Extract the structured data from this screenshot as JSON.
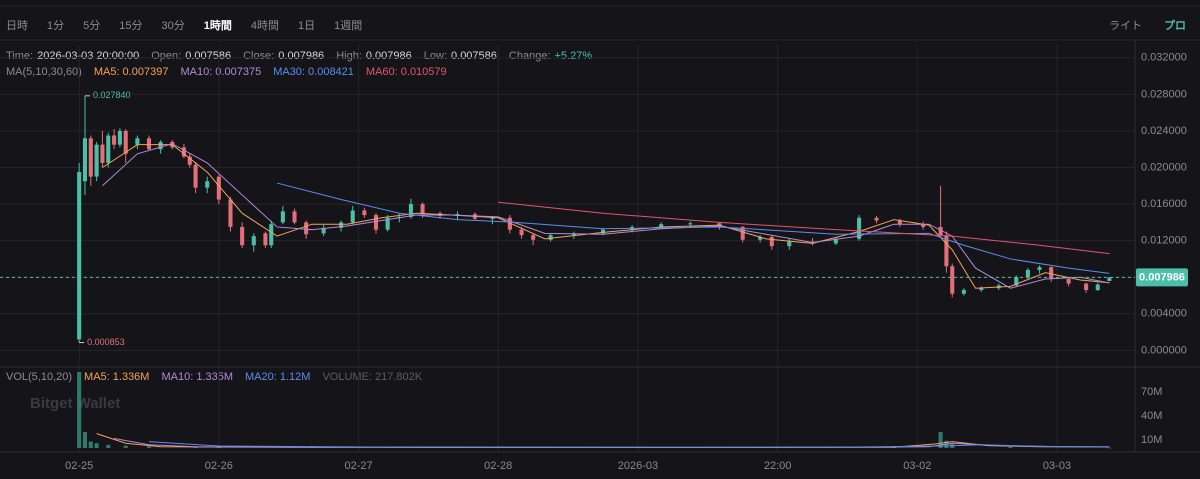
{
  "toolbar": {
    "intervals": [
      "日時",
      "1分",
      "5分",
      "15分",
      "30分",
      "1時間",
      "4時間",
      "1日",
      "1週間"
    ],
    "active_interval": 5,
    "modes": [
      "ライト",
      "プロ"
    ],
    "active_mode": 1
  },
  "chart_data": {
    "type": "candlestick",
    "info": [
      {
        "label": "Time:",
        "value": "2026-03-03 20:00:00"
      },
      {
        "label": "Open:",
        "value": "0.007586"
      },
      {
        "label": "Close:",
        "value": "0.007986"
      },
      {
        "label": "High:",
        "value": "0.007986"
      },
      {
        "label": "Low:",
        "value": "0.007586"
      },
      {
        "label": "Change:",
        "value": "+5.27%"
      }
    ],
    "up_color": "#4cbfa9",
    "down_color": "#e36f7a",
    "xlim": [
      -13.6,
      181.4
    ],
    "xticks": [
      {
        "value": 0,
        "label": "02-25"
      },
      {
        "value": 24,
        "label": "02-26"
      },
      {
        "value": 48,
        "label": "02-27"
      },
      {
        "value": 72,
        "label": "02-28"
      },
      {
        "value": 96,
        "label": "2026-03"
      },
      {
        "value": 120,
        "label": "22:00"
      },
      {
        "value": 144,
        "label": "03-02"
      },
      {
        "value": 168,
        "label": "03-03"
      }
    ],
    "ylim": [
      -0.0016,
      0.0334
    ],
    "yticks": [
      {
        "value": 0,
        "label": "0.000000"
      },
      {
        "value": 0.004,
        "label": "0.004000"
      },
      {
        "value": 0.008,
        "label": "0.008000"
      },
      {
        "value": 0.012,
        "label": "0.012000"
      },
      {
        "value": 0.016,
        "label": "0.016000"
      },
      {
        "value": 0.02,
        "label": "0.020000"
      },
      {
        "value": 0.024,
        "label": "0.024000"
      },
      {
        "value": 0.028,
        "label": "0.028000"
      },
      {
        "value": 0.032,
        "label": "0.032000"
      }
    ],
    "grid": true,
    "last_price": 0.007986,
    "annotations": [
      {
        "x": 1,
        "value": 0.02784,
        "label": "0.027840"
      },
      {
        "x": 0,
        "value": 0.000853,
        "label": "0.000853"
      }
    ],
    "candles": [
      {
        "x": 0,
        "open": 0.0012,
        "high": 0.0205,
        "low": 0.000853,
        "close": 0.0195
      },
      {
        "x": 1,
        "open": 0.0185,
        "high": 0.02784,
        "low": 0.017,
        "close": 0.0232
      },
      {
        "x": 2,
        "open": 0.0232,
        "high": 0.0235,
        "low": 0.018,
        "close": 0.019
      },
      {
        "x": 3,
        "open": 0.019,
        "high": 0.0228,
        "low": 0.0185,
        "close": 0.0225
      },
      {
        "x": 4,
        "open": 0.0225,
        "high": 0.024,
        "low": 0.02,
        "close": 0.0205
      },
      {
        "x": 5,
        "open": 0.0205,
        "high": 0.0238,
        "low": 0.02,
        "close": 0.0235
      },
      {
        "x": 6,
        "open": 0.0235,
        "high": 0.0242,
        "low": 0.022,
        "close": 0.0225
      },
      {
        "x": 7,
        "open": 0.0225,
        "high": 0.0243,
        "low": 0.0222,
        "close": 0.024
      },
      {
        "x": 8,
        "open": 0.024,
        "high": 0.0242,
        "low": 0.0205,
        "close": 0.0215
      },
      {
        "x": 10,
        "open": 0.0225,
        "high": 0.0235,
        "low": 0.022,
        "close": 0.0232
      },
      {
        "x": 12,
        "open": 0.0232,
        "high": 0.0235,
        "low": 0.0218,
        "close": 0.022
      },
      {
        "x": 14,
        "open": 0.022,
        "high": 0.023,
        "low": 0.0215,
        "close": 0.0228
      },
      {
        "x": 16,
        "open": 0.0228,
        "high": 0.023,
        "low": 0.022,
        "close": 0.0222
      },
      {
        "x": 18,
        "open": 0.0222,
        "high": 0.0226,
        "low": 0.021,
        "close": 0.0212
      },
      {
        "x": 19,
        "open": 0.0212,
        "high": 0.0215,
        "low": 0.02,
        "close": 0.0203
      },
      {
        "x": 20,
        "open": 0.0203,
        "high": 0.0206,
        "low": 0.0172,
        "close": 0.0178
      },
      {
        "x": 22,
        "open": 0.0178,
        "high": 0.019,
        "low": 0.0172,
        "close": 0.0185
      },
      {
        "x": 24,
        "open": 0.019,
        "high": 0.0192,
        "low": 0.016,
        "close": 0.0165
      },
      {
        "x": 26,
        "open": 0.0165,
        "high": 0.0168,
        "low": 0.013,
        "close": 0.0135
      },
      {
        "x": 28,
        "open": 0.0135,
        "high": 0.014,
        "low": 0.0112,
        "close": 0.0115
      },
      {
        "x": 30,
        "open": 0.0115,
        "high": 0.0128,
        "low": 0.0108,
        "close": 0.0125
      },
      {
        "x": 32,
        "open": 0.0128,
        "high": 0.013,
        "low": 0.0112,
        "close": 0.0115
      },
      {
        "x": 33,
        "open": 0.0115,
        "high": 0.0142,
        "low": 0.0112,
        "close": 0.0138
      },
      {
        "x": 35,
        "open": 0.014,
        "high": 0.0158,
        "low": 0.0138,
        "close": 0.0152
      },
      {
        "x": 37,
        "open": 0.0152,
        "high": 0.0155,
        "low": 0.0138,
        "close": 0.014
      },
      {
        "x": 39,
        "open": 0.014,
        "high": 0.0142,
        "low": 0.0122,
        "close": 0.0127
      },
      {
        "x": 42,
        "open": 0.0128,
        "high": 0.0137,
        "low": 0.0125,
        "close": 0.0134
      },
      {
        "x": 45,
        "open": 0.0134,
        "high": 0.0142,
        "low": 0.013,
        "close": 0.014
      },
      {
        "x": 47,
        "open": 0.014,
        "high": 0.0158,
        "low": 0.0138,
        "close": 0.0153
      },
      {
        "x": 49,
        "open": 0.0153,
        "high": 0.0156,
        "low": 0.0145,
        "close": 0.0148
      },
      {
        "x": 51,
        "open": 0.0148,
        "high": 0.015,
        "low": 0.0128,
        "close": 0.0132
      },
      {
        "x": 53,
        "open": 0.0132,
        "high": 0.0148,
        "low": 0.013,
        "close": 0.0145
      },
      {
        "x": 55,
        "open": 0.0145,
        "high": 0.015,
        "low": 0.014,
        "close": 0.0146
      },
      {
        "x": 57,
        "open": 0.0146,
        "high": 0.0166,
        "low": 0.0144,
        "close": 0.016
      },
      {
        "x": 59,
        "open": 0.016,
        "high": 0.0162,
        "low": 0.0145,
        "close": 0.015
      },
      {
        "x": 62,
        "open": 0.015,
        "high": 0.0152,
        "low": 0.0144,
        "close": 0.0147
      },
      {
        "x": 65,
        "open": 0.0147,
        "high": 0.0152,
        "low": 0.0143,
        "close": 0.0149
      },
      {
        "x": 68,
        "open": 0.0149,
        "high": 0.0151,
        "low": 0.0142,
        "close": 0.0144
      },
      {
        "x": 71,
        "open": 0.0144,
        "high": 0.0147,
        "low": 0.0138,
        "close": 0.0145
      },
      {
        "x": 74,
        "open": 0.0145,
        "high": 0.0148,
        "low": 0.0128,
        "close": 0.0132
      },
      {
        "x": 76,
        "open": 0.0132,
        "high": 0.0135,
        "low": 0.0122,
        "close": 0.0126
      },
      {
        "x": 78,
        "open": 0.0126,
        "high": 0.0128,
        "low": 0.0115,
        "close": 0.0121
      },
      {
        "x": 81,
        "open": 0.0121,
        "high": 0.0128,
        "low": 0.0119,
        "close": 0.0126
      },
      {
        "x": 85,
        "open": 0.0126,
        "high": 0.013,
        "low": 0.0122,
        "close": 0.0128
      },
      {
        "x": 90,
        "open": 0.0128,
        "high": 0.0134,
        "low": 0.0126,
        "close": 0.0132
      },
      {
        "x": 95,
        "open": 0.0132,
        "high": 0.0137,
        "low": 0.0129,
        "close": 0.0135
      },
      {
        "x": 100,
        "open": 0.0135,
        "high": 0.014,
        "low": 0.0133,
        "close": 0.0138
      },
      {
        "x": 105,
        "open": 0.0138,
        "high": 0.0141,
        "low": 0.0134,
        "close": 0.0139
      },
      {
        "x": 110,
        "open": 0.0139,
        "high": 0.014,
        "low": 0.0132,
        "close": 0.0135
      },
      {
        "x": 114,
        "open": 0.0135,
        "high": 0.0136,
        "low": 0.0118,
        "close": 0.0121
      },
      {
        "x": 117,
        "open": 0.0121,
        "high": 0.0126,
        "low": 0.0118,
        "close": 0.0124
      },
      {
        "x": 119,
        "open": 0.0124,
        "high": 0.0126,
        "low": 0.011,
        "close": 0.0114
      },
      {
        "x": 122,
        "open": 0.0114,
        "high": 0.0122,
        "low": 0.011,
        "close": 0.0119
      },
      {
        "x": 126,
        "open": 0.0119,
        "high": 0.0123,
        "low": 0.0115,
        "close": 0.0117
      },
      {
        "x": 130,
        "open": 0.0117,
        "high": 0.0124,
        "low": 0.0115,
        "close": 0.0122
      },
      {
        "x": 134,
        "open": 0.0122,
        "high": 0.0148,
        "low": 0.012,
        "close": 0.0145
      },
      {
        "x": 137,
        "open": 0.0145,
        "high": 0.0147,
        "low": 0.0139,
        "close": 0.0142
      },
      {
        "x": 141,
        "open": 0.0142,
        "high": 0.0144,
        "low": 0.0135,
        "close": 0.0138
      },
      {
        "x": 145,
        "open": 0.0138,
        "high": 0.0141,
        "low": 0.0132,
        "close": 0.0135
      },
      {
        "x": 148,
        "open": 0.0135,
        "high": 0.018,
        "low": 0.0124,
        "close": 0.0126
      },
      {
        "x": 149,
        "open": 0.0126,
        "high": 0.013,
        "low": 0.0085,
        "close": 0.0092
      },
      {
        "x": 150,
        "open": 0.0092,
        "high": 0.0095,
        "low": 0.0058,
        "close": 0.0062
      },
      {
        "x": 152,
        "open": 0.0062,
        "high": 0.0068,
        "low": 0.006,
        "close": 0.0066
      },
      {
        "x": 155,
        "open": 0.0066,
        "high": 0.007,
        "low": 0.0064,
        "close": 0.0068
      },
      {
        "x": 158,
        "open": 0.0068,
        "high": 0.0073,
        "low": 0.0066,
        "close": 0.0071
      },
      {
        "x": 161,
        "open": 0.0071,
        "high": 0.0082,
        "low": 0.007,
        "close": 0.008
      },
      {
        "x": 163,
        "open": 0.008,
        "high": 0.009,
        "low": 0.0078,
        "close": 0.0088
      },
      {
        "x": 165,
        "open": 0.0088,
        "high": 0.0093,
        "low": 0.0084,
        "close": 0.0091
      },
      {
        "x": 167,
        "open": 0.0091,
        "high": 0.0092,
        "low": 0.0075,
        "close": 0.0078
      },
      {
        "x": 170,
        "open": 0.0078,
        "high": 0.008,
        "low": 0.007,
        "close": 0.0073
      },
      {
        "x": 173,
        "open": 0.0073,
        "high": 0.0074,
        "low": 0.0063,
        "close": 0.0066
      },
      {
        "x": 175,
        "open": 0.0066,
        "high": 0.0074,
        "low": 0.0065,
        "close": 0.0072
      },
      {
        "x": 177,
        "open": 0.007586,
        "high": 0.007986,
        "low": 0.007586,
        "close": 0.007986
      }
    ],
    "ma_title": "MA(5,10,30,60)",
    "ma_lines": [
      {
        "name": "MA5: 0.007397",
        "color": "#f3a35a",
        "x": [
          4,
          10,
          16,
          22,
          28,
          34,
          40,
          46,
          52,
          58,
          64,
          72,
          80,
          90,
          100,
          110,
          118,
          126,
          134,
          140,
          146,
          150,
          154,
          160,
          166,
          172,
          177
        ],
        "values": [
          0.02,
          0.0225,
          0.0225,
          0.0195,
          0.015,
          0.0125,
          0.0138,
          0.0138,
          0.0145,
          0.015,
          0.0148,
          0.0145,
          0.0122,
          0.0129,
          0.0135,
          0.0137,
          0.0122,
          0.0117,
          0.013,
          0.0143,
          0.0137,
          0.011,
          0.0068,
          0.007,
          0.0085,
          0.0077,
          0.007397
        ]
      },
      {
        "name": "MA10: 0.007375",
        "color": "#b38ad8",
        "x": [
          4,
          10,
          16,
          22,
          28,
          34,
          40,
          46,
          52,
          58,
          64,
          72,
          80,
          90,
          100,
          110,
          118,
          126,
          134,
          140,
          146,
          150,
          154,
          160,
          166,
          172,
          177
        ],
        "values": [
          0.018,
          0.0215,
          0.0226,
          0.0205,
          0.017,
          0.0135,
          0.0132,
          0.0136,
          0.0142,
          0.0148,
          0.0148,
          0.0146,
          0.0128,
          0.0127,
          0.0133,
          0.0136,
          0.0127,
          0.0118,
          0.0125,
          0.0138,
          0.0138,
          0.0125,
          0.009,
          0.0068,
          0.0078,
          0.008,
          0.007375
        ]
      },
      {
        "name": "MA30: 0.008421",
        "color": "#5b8def",
        "x": [
          34,
          45,
          55,
          65,
          75,
          90,
          110,
          130,
          146,
          152,
          160,
          170,
          177
        ],
        "values": [
          0.0183,
          0.0165,
          0.015,
          0.0143,
          0.014,
          0.0133,
          0.0135,
          0.0127,
          0.0128,
          0.0115,
          0.01,
          0.009,
          0.008421
        ]
      },
      {
        "name": "MA60: 0.010579",
        "color": "#e2556b",
        "x": [
          72,
          90,
          110,
          130,
          150,
          165,
          177
        ],
        "values": [
          0.0162,
          0.015,
          0.014,
          0.0132,
          0.0125,
          0.0115,
          0.010579
        ]
      }
    ],
    "volume": {
      "title": "VOL(5,10,20)",
      "color": "#2f7a6c",
      "ylim": [
        -2500000,
        97500000
      ],
      "yticks": [
        {
          "value": 10000000,
          "label": "10M"
        },
        {
          "value": 40000000,
          "label": "40M"
        },
        {
          "value": 70000000,
          "label": "70M"
        }
      ],
      "x": [
        0,
        1,
        2,
        3,
        5,
        8,
        12,
        20,
        24,
        40,
        60,
        100,
        140,
        148,
        149,
        150,
        160,
        177
      ],
      "values": [
        95000000,
        20000000,
        8000000,
        6000000,
        4000000,
        3000000,
        2000000,
        1500000,
        1500000,
        1000000,
        800000,
        600000,
        700000,
        20000000,
        9000000,
        5000000,
        1200000,
        217802
      ],
      "last_label": "VOLUME: 217.802K",
      "ma_lines": [
        {
          "name": "MA5: 1.336M",
          "color": "#f3a35a",
          "x": [
            3,
            8,
            14,
            24,
            60,
            100,
            140,
            147,
            150,
            156,
            165,
            177
          ],
          "values": [
            18000000,
            6000000,
            1500000,
            1200000,
            800000,
            700000,
            900000,
            5000000,
            8000000,
            3000000,
            1500000,
            1336000
          ]
        },
        {
          "name": "MA10: 1.335M",
          "color": "#b38ad8",
          "x": [
            6,
            12,
            20,
            40,
            80,
            120,
            146,
            150,
            158,
            170,
            177
          ],
          "values": [
            12000000,
            4000000,
            1500000,
            1000000,
            800000,
            800000,
            1500000,
            6000000,
            3000000,
            1500000,
            1335000
          ]
        },
        {
          "name": "MA20: 1.12M",
          "color": "#5b8def",
          "x": [
            12,
            24,
            50,
            90,
            130,
            148,
            155,
            165,
            177
          ],
          "values": [
            8000000,
            2500000,
            1200000,
            900000,
            900000,
            2500000,
            4000000,
            2000000,
            1120000
          ]
        }
      ]
    },
    "watermark": "Bitget Wallet"
  }
}
